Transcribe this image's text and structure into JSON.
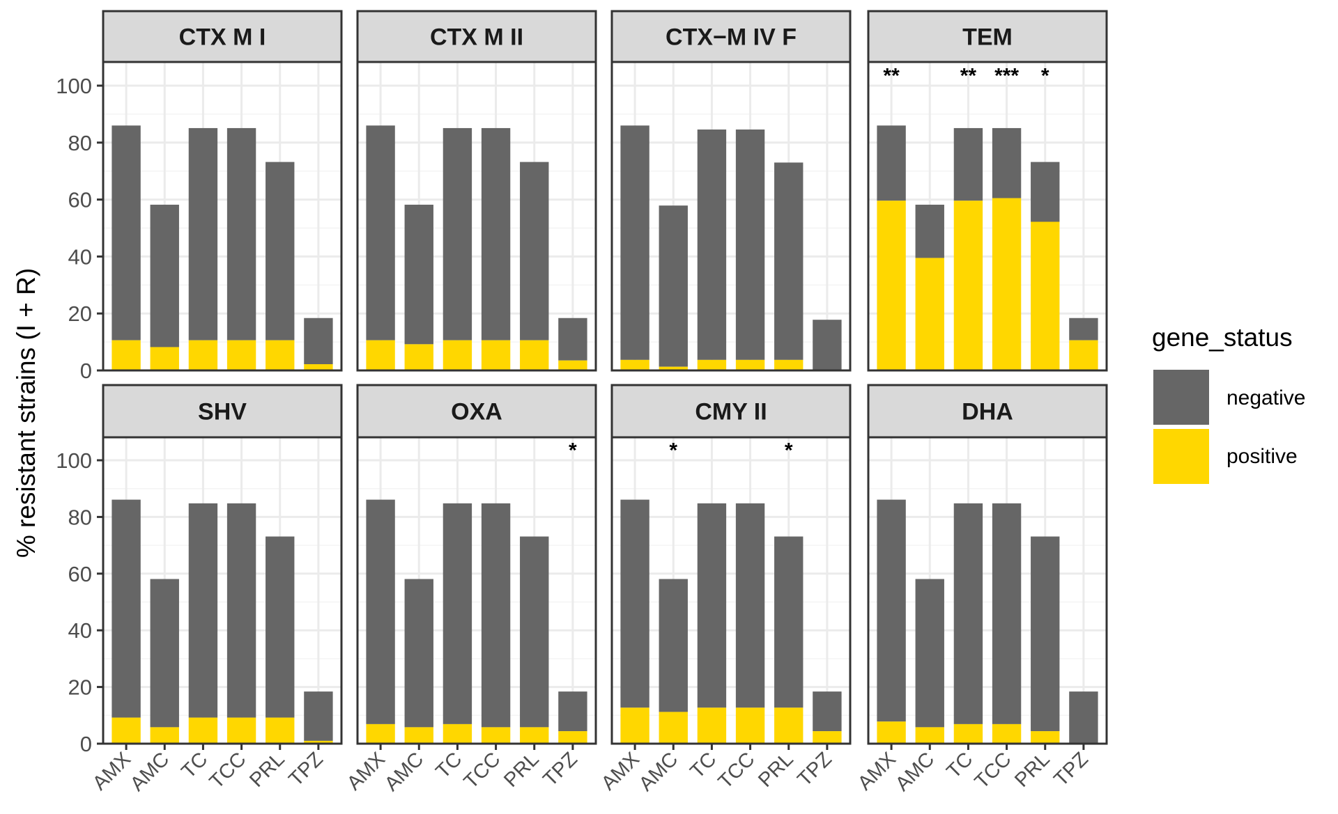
{
  "chart_data": {
    "type": "bar",
    "stacked": true,
    "facet_layout": "2 rows x 4 columns",
    "ylabel": "% resistant strains (I + R)",
    "xlabel": "",
    "ylim": [
      0,
      110
    ],
    "yticks": [
      0,
      20,
      40,
      60,
      80,
      100
    ],
    "grid": true,
    "categories": [
      "AMX",
      "AMC",
      "TC",
      "TCC",
      "PRL",
      "TPZ"
    ],
    "legend": {
      "title": "gene_status",
      "placement": "right",
      "entries": [
        {
          "name": "negative",
          "color": "#666666"
        },
        {
          "name": "positive",
          "color": "#FFD700"
        }
      ]
    },
    "panels": [
      {
        "title": "CTX M I",
        "total": [
          86.0,
          58.2,
          85.1,
          85.1,
          73.2,
          18.4
        ],
        "positive": [
          10.6,
          8.2,
          10.6,
          10.6,
          10.6,
          2.2
        ],
        "significance": [
          "",
          "",
          "",
          "",
          "",
          ""
        ]
      },
      {
        "title": "CTX M II",
        "total": [
          86.0,
          58.2,
          85.1,
          85.1,
          73.2,
          18.4
        ],
        "positive": [
          10.6,
          9.2,
          10.6,
          10.6,
          10.6,
          3.5
        ],
        "significance": [
          "",
          "",
          "",
          "",
          "",
          ""
        ]
      },
      {
        "title": "CTX−M IV F",
        "total": [
          86.0,
          57.9,
          84.6,
          84.6,
          73.0,
          17.8
        ],
        "positive": [
          3.7,
          1.3,
          3.7,
          3.7,
          3.7,
          0
        ],
        "significance": [
          "",
          "",
          "",
          "",
          "",
          ""
        ]
      },
      {
        "title": "TEM",
        "total": [
          86.0,
          58.2,
          85.1,
          85.1,
          73.2,
          18.4
        ],
        "positive": [
          59.6,
          39.5,
          59.6,
          60.5,
          52.2,
          10.6
        ],
        "significance": [
          "**",
          "",
          "**",
          "***",
          "*",
          ""
        ]
      },
      {
        "title": "SHV",
        "total": [
          86.1,
          58.1,
          84.8,
          84.8,
          73.1,
          18.4
        ],
        "positive": [
          9.2,
          5.8,
          9.2,
          9.2,
          9.2,
          1.0
        ],
        "significance": [
          "",
          "",
          "",
          "",
          "",
          ""
        ]
      },
      {
        "title": "OXA",
        "total": [
          86.1,
          58.1,
          84.8,
          84.8,
          73.1,
          18.4
        ],
        "positive": [
          6.9,
          5.8,
          6.9,
          5.8,
          5.8,
          4.4
        ],
        "significance": [
          "",
          "",
          "",
          "",
          "",
          "*"
        ]
      },
      {
        "title": "CMY II",
        "total": [
          86.1,
          58.1,
          84.8,
          84.8,
          73.1,
          18.4
        ],
        "positive": [
          12.7,
          11.2,
          12.7,
          12.7,
          12.7,
          4.4
        ],
        "significance": [
          "",
          "*",
          "",
          "",
          "*",
          ""
        ]
      },
      {
        "title": "DHA",
        "total": [
          86.1,
          58.1,
          84.8,
          84.8,
          73.1,
          18.4
        ],
        "positive": [
          7.8,
          5.8,
          6.9,
          6.9,
          4.4,
          0
        ],
        "significance": [
          "",
          "",
          "",
          "",
          "",
          ""
        ]
      }
    ],
    "significance_y": 104.5
  }
}
